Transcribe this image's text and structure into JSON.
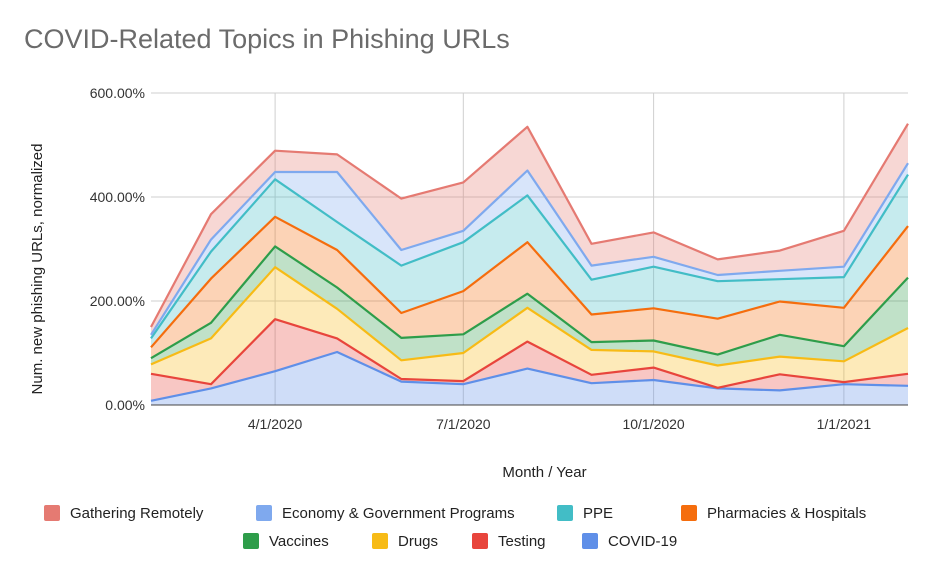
{
  "chart_data": {
    "type": "area",
    "stacked": true,
    "title": "COVID-Related Topics in Phishing URLs",
    "xlabel": "Month / Year",
    "ylabel": "Num. new phishing URLs, normalized",
    "ylim": [
      0,
      600
    ],
    "yticks": [
      "0.00%",
      "200.00%",
      "400.00%",
      "600.00%"
    ],
    "ytick_values": [
      0,
      200,
      400,
      600
    ],
    "xticks": [
      "4/1/2020",
      "7/1/2020",
      "10/1/2020",
      "1/1/2021"
    ],
    "xtick_positions": [
      "2020-04-01",
      "2020-07-01",
      "2020-10-01",
      "2021-01-01"
    ],
    "x": [
      "2020-02-01",
      "2020-03-01",
      "2020-04-01",
      "2020-05-01",
      "2020-06-01",
      "2020-07-01",
      "2020-08-01",
      "2020-09-01",
      "2020-10-01",
      "2020-11-01",
      "2020-12-01",
      "2021-01-01",
      "2021-02-01"
    ],
    "grid": true,
    "legend_position": "bottom",
    "series": [
      {
        "name": "COVID-19",
        "color": "#5f8fe8",
        "values": [
          8,
          32,
          65,
          102,
          45,
          40,
          70,
          42,
          48,
          32,
          28,
          40,
          37
        ]
      },
      {
        "name": "Testing",
        "color": "#e8453c",
        "values": [
          60,
          40,
          165,
          128,
          50,
          46,
          122,
          58,
          72,
          33,
          59,
          44,
          60
        ]
      },
      {
        "name": "Drugs",
        "color": "#f7bb16",
        "values": [
          78,
          128,
          265,
          185,
          86,
          100,
          187,
          106,
          103,
          76,
          93,
          84,
          148
        ]
      },
      {
        "name": "Vaccines",
        "color": "#2e9d4a",
        "values": [
          90,
          158,
          305,
          226,
          129,
          136,
          214,
          121,
          124,
          97,
          135,
          113,
          245
        ]
      },
      {
        "name": "Pharmacies & Hospitals",
        "color": "#f56d0d",
        "values": [
          111,
          243,
          362,
          298,
          177,
          219,
          313,
          174,
          186,
          166,
          199,
          187,
          344
        ]
      },
      {
        "name": "PPE",
        "color": "#42bdc6",
        "values": [
          128,
          295,
          434,
          352,
          268,
          313,
          403,
          241,
          266,
          238,
          242,
          246,
          443
        ]
      },
      {
        "name": "Economy & Government Programs",
        "color": "#7fa9ee",
        "values": [
          135,
          318,
          448,
          448,
          298,
          335,
          451,
          268,
          285,
          250,
          258,
          266,
          465
        ]
      },
      {
        "name": "Gathering Remotely",
        "color": "#e57a72",
        "values": [
          150,
          367,
          489,
          482,
          397,
          428,
          535,
          310,
          332,
          280,
          297,
          335,
          541
        ]
      }
    ],
    "legend_order": [
      "Gathering Remotely",
      "Economy & Government Programs",
      "PPE",
      "Pharmacies & Hospitals",
      "Vaccines",
      "Drugs",
      "Testing",
      "COVID-19"
    ]
  }
}
